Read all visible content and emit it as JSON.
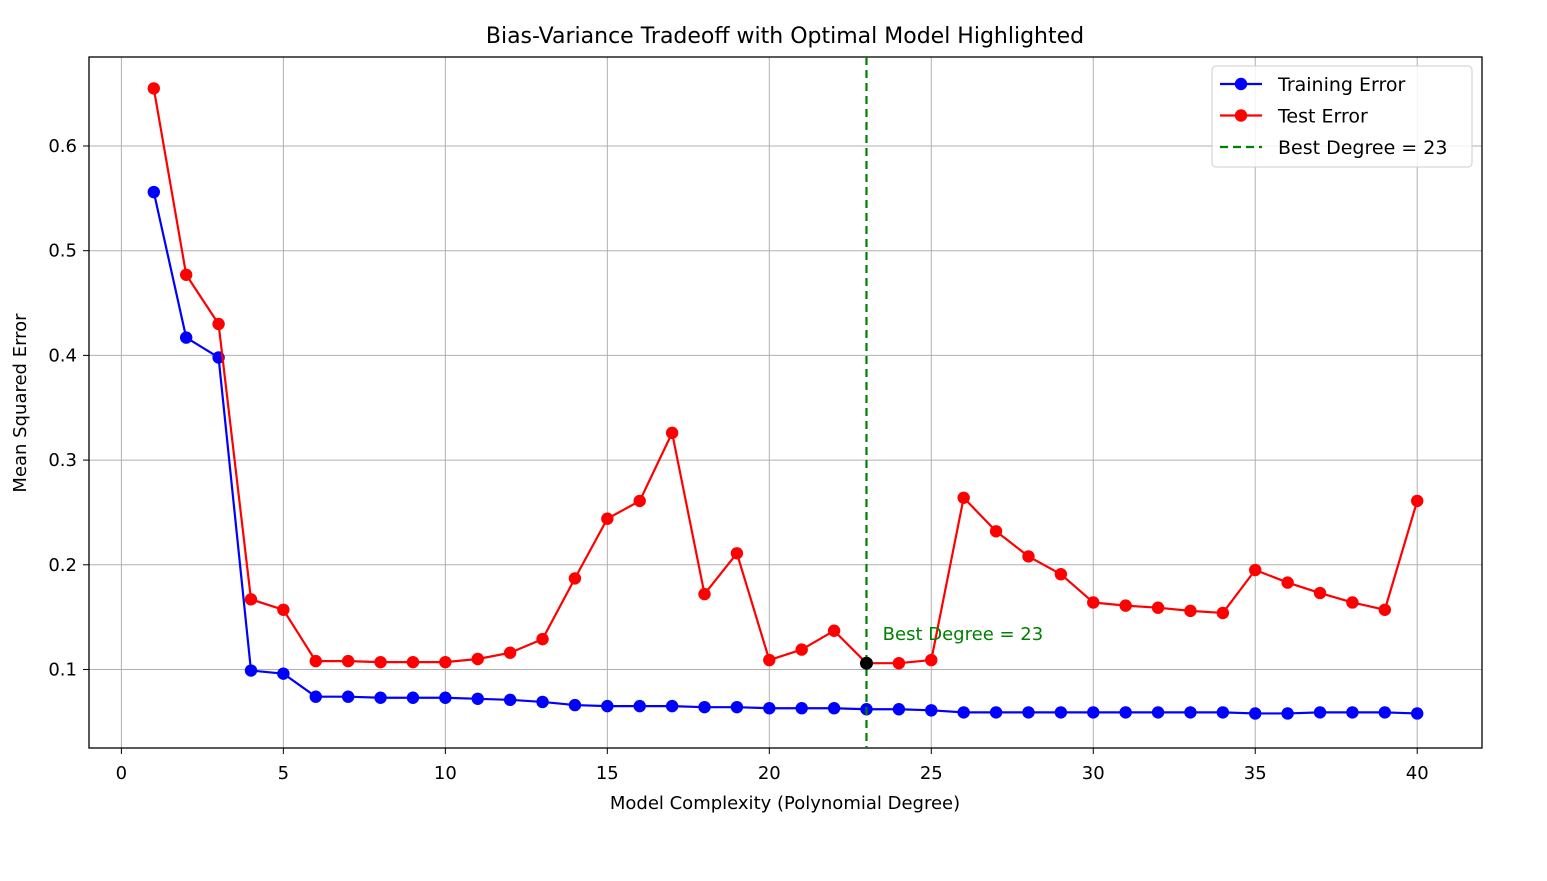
{
  "chart_data": {
    "type": "line",
    "title": "Bias-Variance Tradeoff with Optimal Model Highlighted",
    "xlabel": "Model Complexity (Polynomial Degree)",
    "ylabel": "Mean Squared Error",
    "xlim": [
      -1,
      42
    ],
    "ylim": [
      0.025,
      0.685
    ],
    "xticks": [
      0,
      5,
      10,
      15,
      20,
      25,
      30,
      35,
      40
    ],
    "yticks": [
      0.1,
      0.2,
      0.3,
      0.4,
      0.5,
      0.6
    ],
    "ytick_labels": [
      "0.1",
      "0.2",
      "0.3",
      "0.4",
      "0.5",
      "0.6"
    ],
    "grid": true,
    "legend_position": "top-right",
    "x": [
      1,
      2,
      3,
      4,
      5,
      6,
      7,
      8,
      9,
      10,
      11,
      12,
      13,
      14,
      15,
      16,
      17,
      18,
      19,
      20,
      21,
      22,
      23,
      24,
      25,
      26,
      27,
      28,
      29,
      30,
      31,
      32,
      33,
      34,
      35,
      36,
      37,
      38,
      39,
      40
    ],
    "series": [
      {
        "name": "Training Error",
        "color": "#0000ff",
        "marker": "circle",
        "values": [
          0.556,
          0.417,
          0.398,
          0.099,
          0.096,
          0.074,
          0.074,
          0.073,
          0.073,
          0.073,
          0.072,
          0.071,
          0.069,
          0.066,
          0.065,
          0.065,
          0.065,
          0.064,
          0.064,
          0.063,
          0.063,
          0.063,
          0.062,
          0.062,
          0.061,
          0.059,
          0.059,
          0.059,
          0.059,
          0.059,
          0.059,
          0.059,
          0.059,
          0.059,
          0.058,
          0.058,
          0.059,
          0.059,
          0.059,
          0.058
        ]
      },
      {
        "name": "Test Error",
        "color": "#ff0000",
        "marker": "circle",
        "values": [
          0.655,
          0.477,
          0.43,
          0.167,
          0.157,
          0.108,
          0.108,
          0.107,
          0.107,
          0.107,
          0.11,
          0.116,
          0.129,
          0.187,
          0.244,
          0.261,
          0.326,
          0.172,
          0.211,
          0.109,
          0.119,
          0.137,
          0.106,
          0.106,
          0.109,
          0.264,
          0.232,
          0.208,
          0.191,
          0.164,
          0.161,
          0.159,
          0.156,
          0.154,
          0.195,
          0.183,
          0.173,
          0.164,
          0.157,
          0.261
        ]
      }
    ],
    "best_line": {
      "name": "Best Degree = 23",
      "x": 23,
      "color": "#008000",
      "style": "dashed"
    },
    "best_point": {
      "x": 23,
      "y": 0.106,
      "color": "#000000"
    },
    "annotation": {
      "text": "Best Degree = 23",
      "x": 23.5,
      "y": 0.128,
      "color": "#008000"
    }
  }
}
